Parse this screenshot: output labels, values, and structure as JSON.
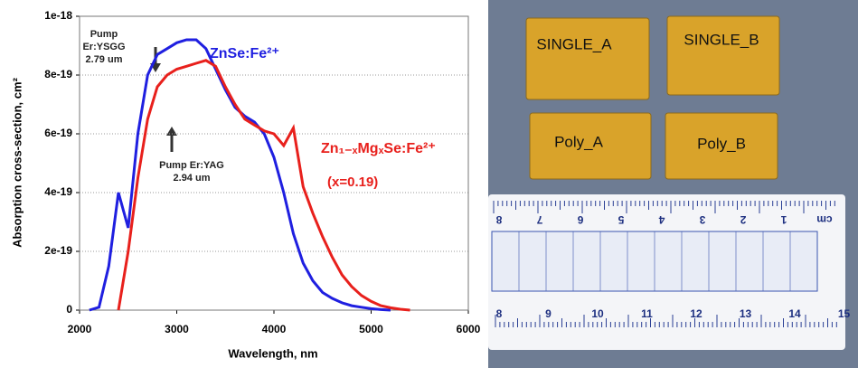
{
  "chart_data": {
    "type": "line",
    "x_label": "Wavelength, nm",
    "y_label": "Absorption cross-section, cm²",
    "x": [
      2100,
      2200,
      2300,
      2400,
      2500,
      2600,
      2700,
      2800,
      2900,
      3000,
      3100,
      3200,
      3300,
      3400,
      3500,
      3600,
      3700,
      3800,
      3900,
      4000,
      4100,
      4200,
      4300,
      4400,
      4500,
      4600,
      4700,
      4800,
      4900,
      5000,
      5100,
      5200,
      5300,
      5400
    ],
    "series": [
      {
        "name": "ZnSe:Fe²⁺",
        "color": "#1f1fe0",
        "values": [
          0,
          1e-20,
          1.5e-19,
          4e-19,
          2.8e-19,
          6e-19,
          8e-19,
          8.7e-19,
          8.9e-19,
          9.1e-19,
          9.2e-19,
          9.2e-19,
          8.9e-19,
          8.2e-19,
          7.5e-19,
          6.9e-19,
          6.6e-19,
          6.4e-19,
          6e-19,
          5.2e-19,
          4e-19,
          2.6e-19,
          1.6e-19,
          1e-19,
          6e-20,
          4e-20,
          2.5e-20,
          1.5e-20,
          1e-20,
          5e-21,
          2e-21,
          0,
          null,
          null
        ]
      },
      {
        "name": "Zn₁₋ₓMgₓSe:Fe²⁺",
        "color": "#e8201c",
        "values": [
          null,
          null,
          null,
          0,
          2e-19,
          4.5e-19,
          6.5e-19,
          7.6e-19,
          8e-19,
          8.2e-19,
          8.3e-19,
          8.4e-19,
          8.5e-19,
          8.3e-19,
          7.6e-19,
          7e-19,
          6.5e-19,
          6.3e-19,
          6.1e-19,
          6e-19,
          5.6e-19,
          6.2e-19,
          4.2e-19,
          3.3e-19,
          2.5e-19,
          1.8e-19,
          1.2e-19,
          8e-20,
          5e-20,
          3e-20,
          1.5e-20,
          8e-21,
          3e-21,
          0
        ]
      }
    ],
    "annotations": [
      "(x=0.19)",
      "Pump",
      "Er:YSGG",
      "2.79 um",
      "Pump Er:YAG",
      "2.94 um"
    ],
    "xlim": [
      2000,
      6000
    ],
    "xticks": [
      2000,
      3000,
      4000,
      5000,
      6000
    ],
    "ylim": [
      0,
      1e-18
    ],
    "yticks": [
      0,
      {
        "value": 2e-19,
        "label": "2e-19"
      },
      {
        "value": 4e-19,
        "label": "4e-19"
      },
      {
        "value": 6e-19,
        "label": "6e-19"
      },
      {
        "value": 8e-19,
        "label": "8e-19"
      },
      {
        "value": 1e-18,
        "label": "1e-18"
      }
    ],
    "grid": true
  },
  "photo": {
    "labels": [
      "SINGLE_A",
      "SINGLE_B",
      "Poly_A",
      "Poly_B"
    ],
    "ruler_top": [
      "cm",
      "1",
      "2",
      "3",
      "4",
      "5",
      "6",
      "7",
      "8"
    ],
    "ruler_bottom": [
      "8",
      "9",
      "10",
      "11",
      "12",
      "13",
      "14",
      "15"
    ]
  }
}
